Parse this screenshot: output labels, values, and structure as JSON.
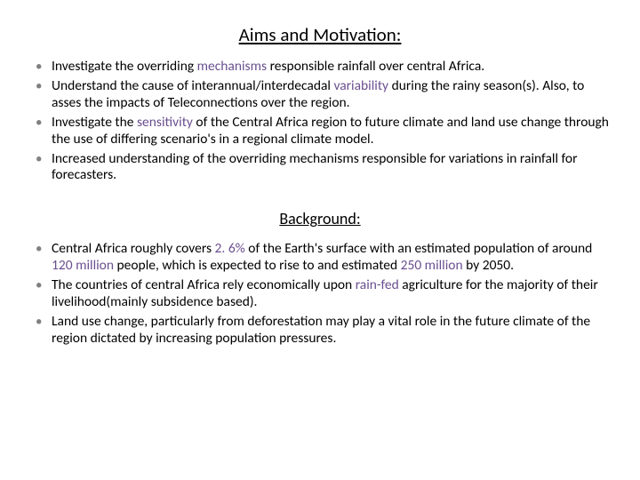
{
  "colors": {
    "text": "#000000",
    "bullet": "#808080",
    "highlight": "#6a4f8f",
    "background": "#ffffff"
  },
  "typography": {
    "font_family": "Calibri",
    "heading_fontsize_pt": 21,
    "subheading_fontsize_pt": 18,
    "body_fontsize_pt": 15.5,
    "line_height": 1.22
  },
  "headings": {
    "aims": "Aims and Motivation:",
    "background": "Background:"
  },
  "aims_items": [
    {
      "pre": "Investigate the overriding ",
      "hl": "mechanisms",
      "post": " responsible rainfall over central Africa."
    },
    {
      "pre": "Understand the cause of interannual/interdecadal ",
      "hl": "variability",
      "post": " during the rainy season(s). Also, to asses the impacts of Teleconnections over the region."
    },
    {
      "pre": "Investigate the ",
      "hl": "sensitivity",
      "post": " of the Central Africa region to future climate and land use change through the use of differing scenario's in a regional climate model."
    },
    {
      "pre": "Increased understanding of the overriding mechanisms responsible for variations in rainfall for forecasters.",
      "hl": "",
      "post": ""
    }
  ],
  "background_items": [
    {
      "segments": [
        {
          "t": " Central Africa roughly covers ",
          "hl": false
        },
        {
          "t": "2. 6% ",
          "hl": true
        },
        {
          "t": "of the Earth's surface with an estimated population of around ",
          "hl": false
        },
        {
          "t": "120 million ",
          "hl": true
        },
        {
          "t": "people, which is expected to rise to and estimated ",
          "hl": false
        },
        {
          "t": "250 million ",
          "hl": true
        },
        {
          "t": "by 2050.",
          "hl": false
        }
      ]
    },
    {
      "segments": [
        {
          "t": "The countries of central Africa rely economically upon ",
          "hl": false
        },
        {
          "t": "rain-fed ",
          "hl": true
        },
        {
          "t": "agriculture for the majority of their livelihood(mainly subsidence based).",
          "hl": false
        }
      ]
    },
    {
      "segments": [
        {
          "t": " Land use change, particularly from deforestation may play a vital role in the future climate of the region dictated by increasing population pressures.",
          "hl": false
        }
      ]
    }
  ]
}
